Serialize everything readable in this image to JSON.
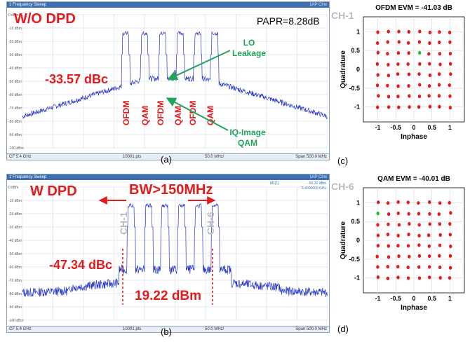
{
  "panelA": {
    "titlebar": "1 Frequency Sweep",
    "titlebar_right": "1AP Clrw",
    "y_ticks": [
      "0 dBm",
      "-10 dBm",
      "-20 dBm",
      "-30 dBm",
      "-40 dBm",
      "-50 dBm",
      "-60 dBm",
      "-70 dBm",
      "-80 dBm",
      "-90 dBm",
      "-100 dBm"
    ],
    "heading": "W/O DPD",
    "papr": "PAPR=8.28dB",
    "dbc": "-33.57 dBc",
    "lo_label_1": "LO",
    "lo_label_2": "Leakage",
    "iq_label_1": "IQ-Image",
    "iq_label_2": "QAM",
    "channels": [
      "OFDM",
      "QAM",
      "OFDM",
      "QAM",
      "OFDM",
      "QAM"
    ],
    "footer_left": "CF 5.4 GHz",
    "footer_mid": "10001 pts",
    "footer_mid2": "50.0 MHz/",
    "footer_right": "Span 500.0 MHz",
    "sublabel": "(a)"
  },
  "panelB": {
    "titlebar": "1 Frequency Sweep",
    "titlebar_right": "1AP Clrw",
    "marker_1": "M1[1]",
    "marker_2": "-50.20 dBm",
    "marker_3": "5.4000000 GHz",
    "y_ticks": [
      "0 dBm",
      "-10 dBm",
      "-20 dBm",
      "-30 dBm",
      "-40 dBm",
      "-50 dBm",
      "-60 dBm",
      "-70 dBm",
      "-80 dBm",
      "-90 dBm",
      "-100 dBm"
    ],
    "heading": "W DPD",
    "bw": "BW>150MHz",
    "ch1": "CH-1",
    "ch6": "CH-6",
    "dbc": "-47.34 dBc",
    "power": "19.22 dBm",
    "footer_left": "CF 5.4 GHz",
    "footer_mid": "10001 pts",
    "footer_mid2": "50.0 MHz/",
    "footer_right": "Span 500.0 MHz",
    "sublabel": "(b)"
  },
  "panelC": {
    "ch_label": "CH-1",
    "sublabel": "(c)"
  },
  "panelD": {
    "ch_label": "CH-6",
    "sublabel": "(d)"
  },
  "chart_data": [
    {
      "type": "line",
      "title": "",
      "xlabel": "",
      "ylabel": "",
      "ylim": [
        -105,
        5
      ],
      "x_range_mhz": [
        5150,
        5650
      ],
      "grid": true,
      "series": [
        {
          "values_note": "",
          "peaks_dbm": [
            -15,
            -15,
            -15,
            -15,
            -15,
            -15
          ],
          "noise_floor_dbm": -80
        }
      ]
    },
    {
      "type": "line",
      "title": "",
      "xlabel": "",
      "ylabel": "",
      "ylim": [
        -105,
        5
      ],
      "x_range_mhz": [
        5150,
        5650
      ],
      "grid": true,
      "series": [
        {
          "values_note": "",
          "peaks_dbm": [
            -15,
            -15,
            -15,
            -15,
            -15,
            -15
          ],
          "noise_floor_dbm": -85
        }
      ]
    },
    {
      "type": "scatter",
      "title": "OFDM EVM = -41.03 dB",
      "xlabel": "Inphase",
      "ylabel": "Quadrature",
      "xlim": [
        -1.4,
        1.4
      ],
      "ylim": [
        -1.4,
        1.4
      ],
      "xticks": [
        "-1",
        "-0.5",
        "0",
        "0.5",
        "1"
      ],
      "yticks": [
        "1",
        "0.5",
        "0",
        "-0.5",
        "-1"
      ],
      "grid": true,
      "levels": [
        -1,
        -0.714,
        -0.428,
        -0.143,
        0.143,
        0.428,
        0.714,
        1
      ],
      "point_color": "#e41a1c",
      "highlight_point": {
        "i": 0.143,
        "q": 0.428,
        "color": "#22c02a"
      }
    },
    {
      "type": "scatter",
      "title": "QAM EVM = -40.01 dB",
      "xlabel": "Inphase",
      "ylabel": "Quadrature",
      "xlim": [
        -1.4,
        1.4
      ],
      "ylim": [
        -1.4,
        1.4
      ],
      "xticks": [
        "-1",
        "-0.5",
        "0",
        "0.5",
        "1"
      ],
      "yticks": [
        "1",
        "0.5",
        "0",
        "-0.5",
        "-1"
      ],
      "grid": true,
      "levels": [
        -1,
        -0.714,
        -0.428,
        -0.143,
        0.143,
        0.428,
        0.714,
        1
      ],
      "point_color": "#e41a1c",
      "highlight_point": {
        "i": -1,
        "q": 0.714,
        "color": "#22c02a"
      }
    }
  ]
}
